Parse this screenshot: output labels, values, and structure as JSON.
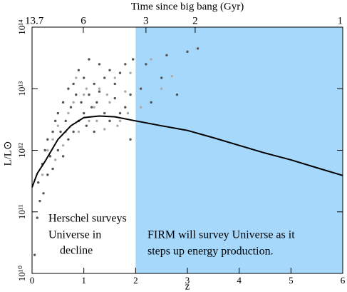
{
  "chart_data": {
    "type": "scatter",
    "title": "Time since big bang (Gyr)",
    "x_label": "z",
    "y_label": "L/L⊙",
    "xlim": [
      0,
      6
    ],
    "xticks": [
      0,
      1,
      2,
      3,
      4,
      5,
      6
    ],
    "x2ticks": [
      {
        "value": 0,
        "label": "13.7"
      },
      {
        "value": 0.99,
        "label": "6"
      },
      {
        "value": 2.2,
        "label": "3"
      },
      {
        "value": 3.15,
        "label": "2"
      },
      {
        "value": 6,
        "label": "1"
      }
    ],
    "ylim": [
      10000000000,
      100000000000000
    ],
    "yticks": [
      {
        "value": 10000000000,
        "label": "10¹⁰"
      },
      {
        "value": 100000000000,
        "label": "10¹¹"
      },
      {
        "value": 1000000000000,
        "label": "10¹²"
      },
      {
        "value": 10000000000000,
        "label": "10¹³"
      },
      {
        "value": 100000000000000,
        "label": "10¹⁴"
      }
    ],
    "y_scale": "log",
    "highlight": {
      "x": [
        2,
        6
      ],
      "color": "#a6d8fb"
    },
    "series": [
      {
        "color": "#555555",
        "x": [
          0.05,
          0.1,
          0.12,
          0.15,
          0.2,
          0.22,
          0.25,
          0.3,
          0.3,
          0.35,
          0.4,
          0.4,
          0.45,
          0.5,
          0.5,
          0.55,
          0.6,
          0.6,
          0.65,
          0.7,
          0.7,
          0.75,
          0.8,
          0.8,
          0.85,
          0.9,
          0.9,
          0.95,
          1.0,
          1.0,
          1.05,
          1.1,
          1.1,
          1.15,
          1.2,
          1.2,
          1.25,
          1.3,
          1.3,
          1.4,
          1.4,
          1.5,
          1.5,
          1.6,
          1.6,
          1.7,
          1.7,
          1.8,
          1.8,
          1.9,
          1.9,
          1.95,
          2.1,
          2.2,
          2.3,
          2.5,
          2.6,
          2.8,
          3.0,
          3.2
        ],
        "values": [
          20000000000.0,
          80000000000.0,
          300000000000.0,
          150000000000.0,
          600000000000.0,
          200000000000.0,
          1000000000000.0,
          400000000000.0,
          1500000000000.0,
          800000000000.0,
          2000000000000.0,
          500000000000.0,
          3000000000000.0,
          1000000000000.0,
          4000000000000.0,
          2000000000000.0,
          6000000000000.0,
          800000000000.0,
          3000000000000.0,
          10000000000000.0,
          1500000000000.0,
          5000000000000.0,
          2000000000000.0,
          12000000000000.0,
          8000000000000.0,
          3000000000000.0,
          20000000000000.0,
          6000000000000.0,
          4000000000000.0,
          15000000000000.0,
          2500000000000.0,
          8000000000000.0,
          30000000000000.0,
          5000000000000.0,
          12000000000000.0,
          2000000000000.0,
          6000000000000.0,
          25000000000000.0,
          9000000000000.0,
          4000000000000.0,
          15000000000000.0,
          3000000000000.0,
          20000000000000.0,
          7000000000000.0,
          12000000000000.0,
          4000000000000.0,
          18000000000000.0,
          5000000000000.0,
          25000000000000.0,
          1500000000000.0,
          8000000000000.0,
          30000000000000.0,
          10000000000000.0,
          25000000000000.0,
          6000000000000.0,
          15000000000000.0,
          35000000000000.0,
          8000000000000.0,
          40000000000000.0,
          45000000000000.0
        ]
      },
      {
        "color": "#aaaaaa",
        "x": [
          0.2,
          0.3,
          0.4,
          0.5,
          0.6,
          0.7,
          0.8,
          0.9,
          1.0,
          1.1,
          1.2,
          1.3,
          1.4,
          1.5,
          1.6,
          1.7,
          1.8,
          1.9,
          2.1,
          2.3,
          2.5,
          2.7,
          0.45,
          0.65,
          0.85,
          1.05,
          1.25,
          1.45,
          1.65,
          1.85
        ],
        "values": [
          400000000000.0,
          1000000000000.0,
          1500000000000.0,
          2500000000000.0,
          1200000000000.0,
          4000000000000.0,
          6000000000000.0,
          2000000000000.0,
          8000000000000.0,
          3000000000000.0,
          5000000000000.0,
          10000000000000.0,
          2200000000000.0,
          6000000000000.0,
          15000000000000.0,
          3000000000000.0,
          9000000000000.0,
          18000000000000.0,
          5000000000000.0,
          30000000000000.0,
          10000000000000.0,
          16000000000000.0,
          700000000000.0,
          2000000000000.0,
          15000000000000.0,
          10000000000000.0,
          3000000000000.0,
          8000000000000.0,
          2500000000000.0,
          4000000000000.0
        ]
      }
    ],
    "curve": {
      "color": "#000000",
      "x": [
        0,
        0.1,
        0.25,
        0.5,
        0.75,
        1,
        1.3,
        1.6,
        2,
        2.5,
        3,
        3.5,
        4,
        4.5,
        5,
        5.5,
        6
      ],
      "values": [
        250000000000.0,
        420000000000.0,
        660000000000.0,
        1500000000000.0,
        2500000000000.0,
        3400000000000.0,
        3600000000000.0,
        3500000000000.0,
        3000000000000.0,
        2500000000000.0,
        2100000000000.0,
        1600000000000.0,
        1200000000000.0,
        900000000000.0,
        700000000000.0,
        520000000000.0,
        390000000000.0
      ]
    },
    "annotations": [
      "Herschel surveys",
      "Universe in",
      "decline",
      "FIRM will survey Universe as it",
      "steps up energy production."
    ]
  }
}
